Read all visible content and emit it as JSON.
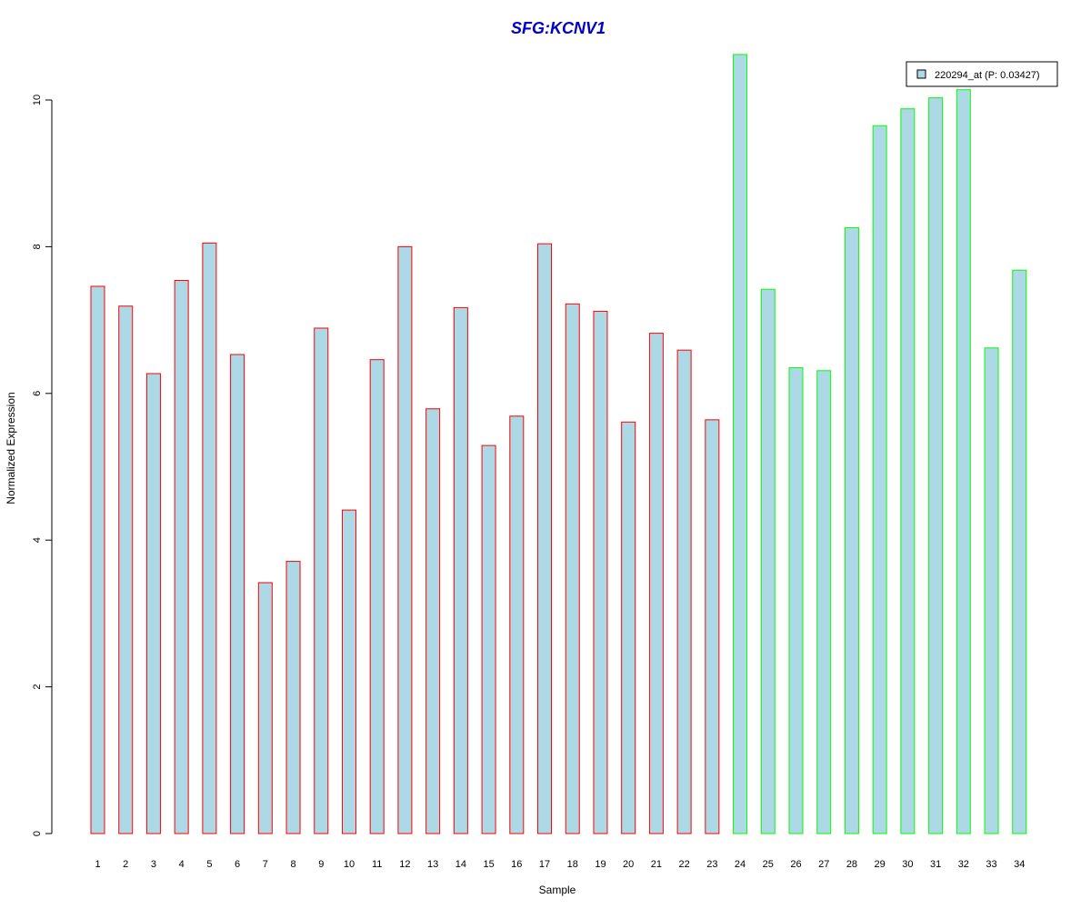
{
  "chart_data": {
    "type": "bar",
    "title": "SFG:KCNV1",
    "xlabel": "Sample",
    "ylabel": "Normalized Expression",
    "ylim": [
      0,
      10.6
    ],
    "yticks": [
      "0",
      "2",
      "4",
      "6",
      "8",
      "10"
    ],
    "grid": false,
    "legend": {
      "position": "top-right",
      "entries": [
        "220294_at (P: 0.03427)"
      ]
    },
    "categories": [
      "1",
      "2",
      "3",
      "4",
      "5",
      "6",
      "7",
      "8",
      "9",
      "10",
      "11",
      "12",
      "13",
      "14",
      "15",
      "16",
      "17",
      "18",
      "19",
      "20",
      "21",
      "22",
      "23",
      "24",
      "25",
      "26",
      "27",
      "28",
      "29",
      "30",
      "31",
      "32",
      "33",
      "34"
    ],
    "series": [
      {
        "name": "220294_at (P: 0.03427)",
        "fill": "#add8e6",
        "values": [
          7.46,
          7.19,
          6.27,
          7.54,
          8.05,
          6.53,
          3.42,
          3.71,
          6.89,
          4.41,
          6.46,
          8.0,
          5.79,
          7.17,
          5.29,
          5.69,
          8.04,
          7.22,
          7.12,
          5.61,
          6.82,
          6.59,
          5.64,
          10.62,
          7.42,
          6.35,
          6.31,
          8.26,
          9.65,
          9.88,
          10.03,
          10.14,
          6.62,
          7.68
        ],
        "border_colors": [
          "#ff0000",
          "#ff0000",
          "#ff0000",
          "#ff0000",
          "#ff0000",
          "#ff0000",
          "#ff0000",
          "#ff0000",
          "#ff0000",
          "#ff0000",
          "#ff0000",
          "#ff0000",
          "#ff0000",
          "#ff0000",
          "#ff0000",
          "#ff0000",
          "#ff0000",
          "#ff0000",
          "#ff0000",
          "#ff0000",
          "#ff0000",
          "#ff0000",
          "#ff0000",
          "#00ff00",
          "#00ff00",
          "#00ff00",
          "#00ff00",
          "#00ff00",
          "#00ff00",
          "#00ff00",
          "#00ff00",
          "#00ff00",
          "#00ff00",
          "#00ff00"
        ]
      }
    ],
    "colors": {
      "title": "#0000cc",
      "bar_fill": "#add8e6",
      "group1_border": "#ff0000",
      "group2_border": "#00ff00"
    }
  }
}
